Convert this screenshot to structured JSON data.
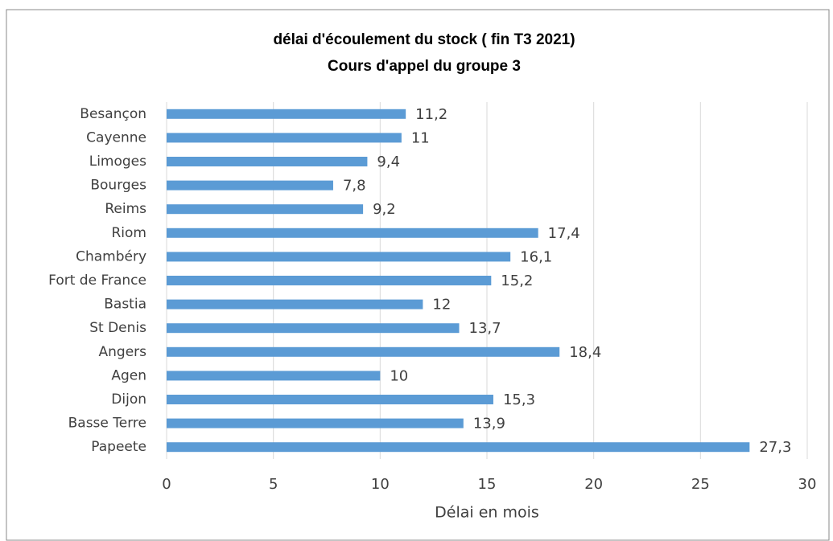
{
  "chart_data": {
    "type": "bar",
    "orientation": "horizontal",
    "title": "délai d'écoulement du stock ( fin T3 2021)",
    "subtitle": "Cours d'appel du groupe 3",
    "x_label": "Délai en mois",
    "categories": [
      "Besançon",
      "Cayenne",
      "Limoges",
      "Bourges",
      "Reims",
      "Riom",
      "Chambéry",
      "Fort de France",
      "Bastia",
      "St Denis",
      "Angers",
      "Agen",
      "Dijon",
      "Basse Terre",
      "Papeete"
    ],
    "values": [
      11.2,
      11,
      9.4,
      7.8,
      9.2,
      17.4,
      16.1,
      15.2,
      12,
      13.7,
      18.4,
      10,
      15.3,
      13.9,
      27.3
    ],
    "value_labels": [
      "11,2",
      "11",
      "9,4",
      "7,8",
      "9,2",
      "17,4",
      "16,1",
      "15,2",
      "12",
      "13,7",
      "18,4",
      "10",
      "15,3",
      "13,9",
      "27,3"
    ],
    "color": "#5b9bd5",
    "xlim": [
      0,
      30
    ],
    "xticks": [
      0,
      5,
      10,
      15,
      20,
      25,
      30
    ],
    "grid": true
  }
}
